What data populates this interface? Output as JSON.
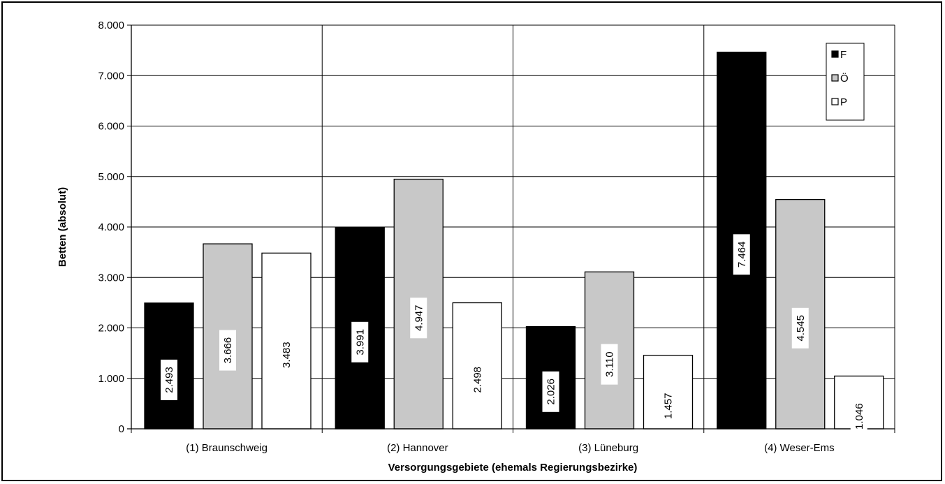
{
  "chart_data": {
    "type": "bar",
    "title": "",
    "xlabel": "Versorgungsgebiete (ehemals Regierungsbezirke)",
    "ylabel": "Betten (absolut)",
    "categories": [
      "(1) Braunschweig",
      "(2) Hannover",
      "(3) Lüneburg",
      "(4) Weser-Ems"
    ],
    "series": [
      {
        "name": "F",
        "color": "#000000",
        "values": [
          2493,
          3991,
          2026,
          7464
        ],
        "labels": [
          "2.493",
          "3.991",
          "2.026",
          "7.464"
        ]
      },
      {
        "name": "Ö",
        "color": "#c8c8c8",
        "values": [
          3666,
          4947,
          3110,
          4545
        ],
        "labels": [
          "3.666",
          "4.947",
          "3.110",
          "4.545"
        ]
      },
      {
        "name": "P",
        "color": "#ffffff",
        "values": [
          3483,
          2498,
          1457,
          1046
        ],
        "labels": [
          "3.483",
          "2.498",
          "1.457",
          "1.046"
        ]
      }
    ],
    "ylim": [
      0,
      8000
    ],
    "yticks": [
      0,
      1000,
      2000,
      3000,
      4000,
      5000,
      6000,
      7000,
      8000
    ],
    "ytick_labels": [
      "0",
      "1.000",
      "2.000",
      "3.000",
      "4.000",
      "5.000",
      "6.000",
      "7.000",
      "8.000"
    ],
    "grid": true,
    "legend_position": "top-right"
  }
}
